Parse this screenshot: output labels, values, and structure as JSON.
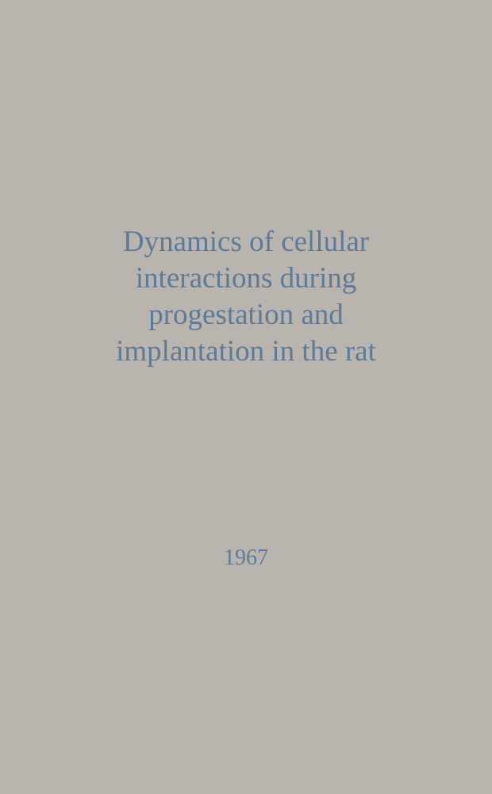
{
  "document": {
    "title": "Dynamics of cellular interactions during progestation and implantation in the rat",
    "year": "1967",
    "background_color": "#b9b5ae",
    "text_color": "#5c7a99",
    "title_fontsize": 37,
    "year_fontsize": 28,
    "font_family": "Georgia, serif"
  }
}
